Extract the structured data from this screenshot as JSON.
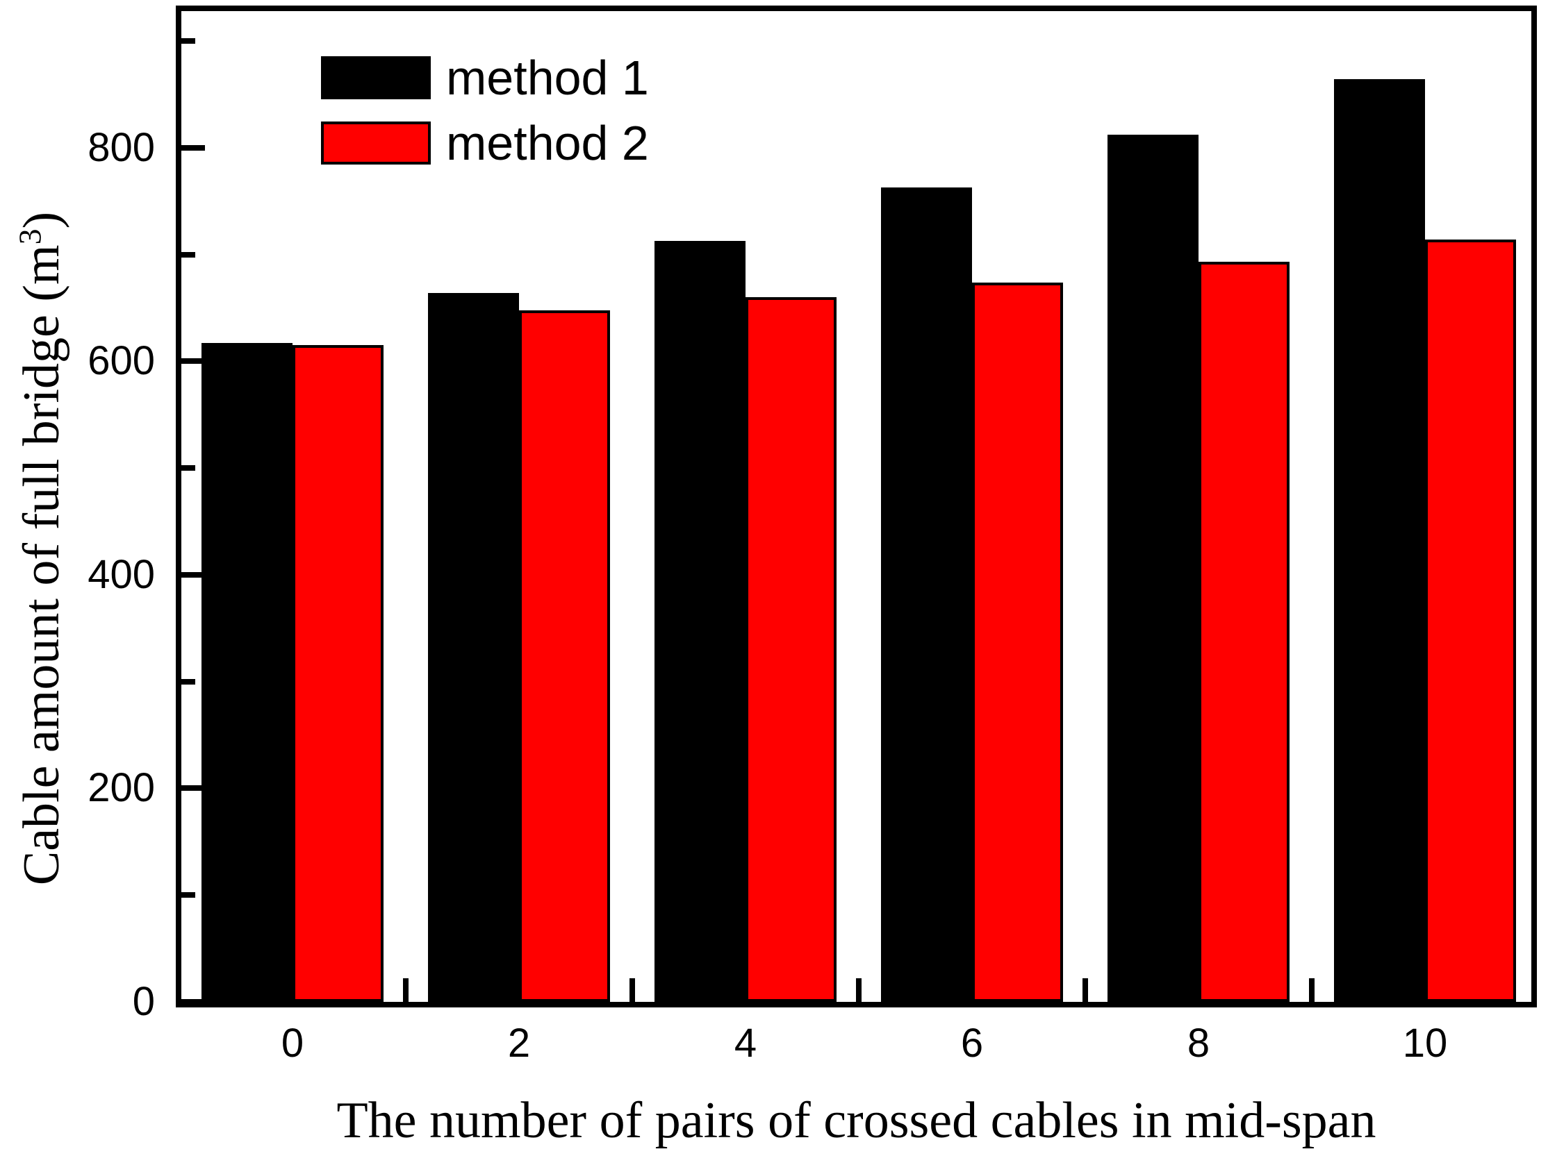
{
  "chart_data": {
    "type": "bar",
    "title": "",
    "categories": [
      "0",
      "2",
      "4",
      "6",
      "8",
      "10"
    ],
    "series": [
      {
        "name": "method 1",
        "color": "#000000",
        "values": [
          617,
          664,
          713,
          763,
          812,
          864
        ]
      },
      {
        "name": "method 2",
        "color": "#ff0000",
        "values": [
          615,
          648,
          660,
          674,
          693,
          714
        ]
      }
    ],
    "xlabel": "The number of pairs of crossed cables in mid-span",
    "ylabel": "Cable amount of full bridge (m³)",
    "ylabel_parts": {
      "prefix": "Cable amount of full bridge (m",
      "sup": "3",
      "suffix": ")"
    },
    "ylim": [
      0,
      928
    ],
    "y_major_ticks": [
      0,
      200,
      400,
      600,
      800
    ],
    "y_minor_ticks": [
      100,
      300,
      500,
      700,
      900
    ],
    "grid": false,
    "legend_position": "top-left-inside",
    "bar_outline_color": "#000000",
    "axis_color": "#000000",
    "background_color": "#ffffff"
  }
}
